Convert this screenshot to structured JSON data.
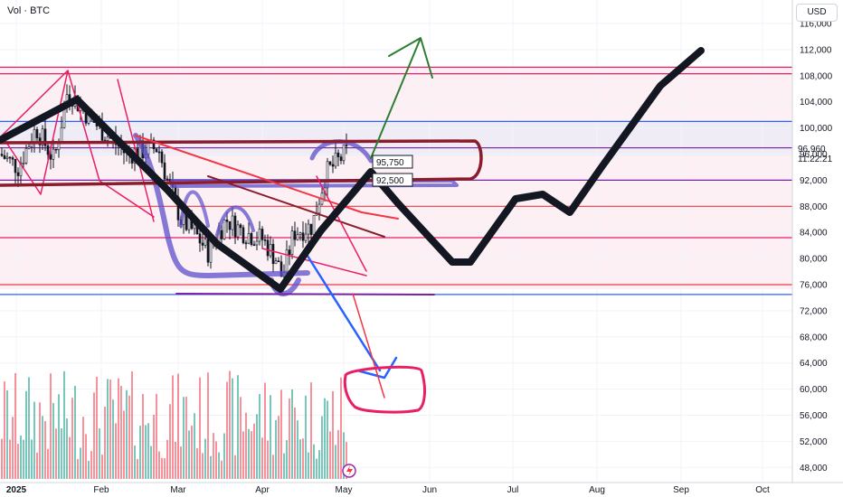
{
  "header": {
    "volume_label": "Vol · BTC",
    "currency": "USD"
  },
  "chart_data": {
    "type": "candlestick",
    "symbol": "BTC",
    "y_axis": {
      "ticks": [
        "116,000",
        "112,000",
        "108,000",
        "104,000",
        "100,000",
        "96,000",
        "92,000",
        "88,000",
        "84,000",
        "80,000",
        "76,000",
        "72,000",
        "68,000",
        "64,000",
        "60,000",
        "56,000",
        "52,000",
        "48,000"
      ],
      "range": [
        46500,
        117500
      ]
    },
    "x_axis": {
      "ticks": [
        "2025",
        "Feb",
        "Mar",
        "Apr",
        "May",
        "Jun",
        "Jul",
        "Aug",
        "Sep",
        "Oct"
      ]
    },
    "last_price": {
      "value": "96,960",
      "countdown": "11:22:21"
    },
    "box_labels": [
      "95,750",
      "92,500"
    ],
    "horizontal_levels": [
      {
        "price": 109300,
        "color": "#e91e63"
      },
      {
        "price": 108300,
        "color": "#e91e63"
      },
      {
        "price": 101000,
        "color": "#2962ff"
      },
      {
        "price": 96960,
        "color": "#7b1fa2"
      },
      {
        "price": 92000,
        "color": "#7b1fa2"
      },
      {
        "price": 88000,
        "color": "#f23645"
      },
      {
        "price": 83200,
        "color": "#e91e63"
      },
      {
        "price": 76000,
        "color": "#f23645"
      },
      {
        "price": 74500,
        "color": "#2962ff"
      }
    ],
    "projection_path_prices": [
      96000,
      92000,
      84000,
      76000,
      81000,
      88000,
      92000,
      89000,
      100000,
      107000,
      112000
    ]
  }
}
